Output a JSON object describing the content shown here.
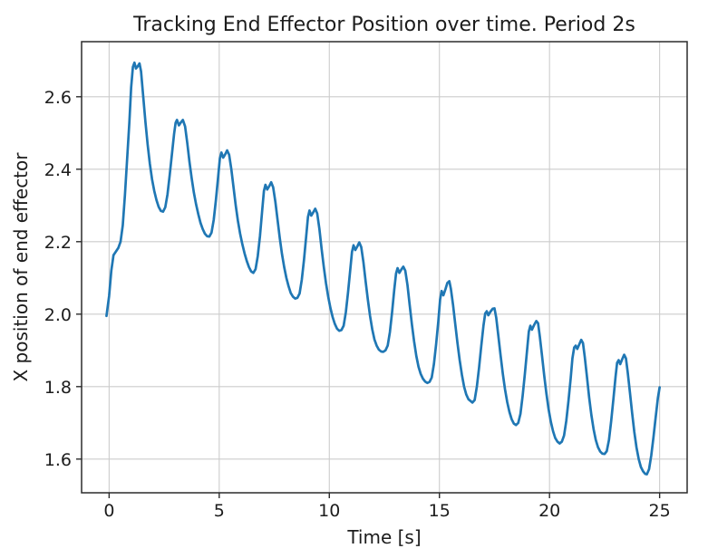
{
  "figure": {
    "background_color": "#ffffff"
  },
  "chart_data": {
    "type": "line",
    "title": "Tracking End Effector Position over time. Period 2s",
    "xlabel": "Time [s]",
    "ylabel": "X position of end effector",
    "xlim": [
      -1.25,
      26.25
    ],
    "ylim": [
      1.507,
      2.752
    ],
    "xtick_values": [
      0,
      5,
      10,
      15,
      20,
      25
    ],
    "xtick_labels": [
      "0",
      "5",
      "10",
      "15",
      "20",
      "25"
    ],
    "ytick_values": [
      1.6,
      1.8,
      2.0,
      2.2,
      2.4,
      2.6
    ],
    "ytick_labels": [
      "1.6",
      "1.8",
      "2.0",
      "2.2",
      "2.4",
      "2.6"
    ],
    "grid": true,
    "legend": "none",
    "line_color": "#1f77b4",
    "grid_color": "#cccccc",
    "spine_color": "#2b2b2b",
    "tick_color": "#2b2b2b",
    "text_color": "#1c1c1c",
    "series": [
      {
        "name": "x-position-of-end-effector",
        "points": [
          [
            -0.12,
            1.995
          ],
          [
            0,
            2.05
          ],
          [
            0.1,
            2.12
          ],
          [
            0.2,
            2.163
          ],
          [
            0.3,
            2.172
          ],
          [
            0.42,
            2.183
          ],
          [
            0.52,
            2.2
          ],
          [
            0.62,
            2.245
          ],
          [
            0.72,
            2.33
          ],
          [
            0.82,
            2.43
          ],
          [
            0.92,
            2.53
          ],
          [
            1.0,
            2.625
          ],
          [
            1.08,
            2.682
          ],
          [
            1.15,
            2.694
          ],
          [
            1.22,
            2.678
          ],
          [
            1.3,
            2.684
          ],
          [
            1.38,
            2.692
          ],
          [
            1.45,
            2.67
          ],
          [
            1.55,
            2.6
          ],
          [
            1.65,
            2.53
          ],
          [
            1.75,
            2.468
          ],
          [
            1.85,
            2.415
          ],
          [
            1.95,
            2.372
          ],
          [
            2.05,
            2.34
          ],
          [
            2.15,
            2.315
          ],
          [
            2.25,
            2.296
          ],
          [
            2.35,
            2.285
          ],
          [
            2.45,
            2.283
          ],
          [
            2.55,
            2.295
          ],
          [
            2.65,
            2.33
          ],
          [
            2.75,
            2.383
          ],
          [
            2.85,
            2.44
          ],
          [
            2.95,
            2.497
          ],
          [
            3.02,
            2.528
          ],
          [
            3.08,
            2.536
          ],
          [
            3.17,
            2.521
          ],
          [
            3.27,
            2.53
          ],
          [
            3.35,
            2.536
          ],
          [
            3.45,
            2.518
          ],
          [
            3.55,
            2.472
          ],
          [
            3.65,
            2.42
          ],
          [
            3.75,
            2.375
          ],
          [
            3.85,
            2.335
          ],
          [
            3.95,
            2.303
          ],
          [
            4.05,
            2.276
          ],
          [
            4.15,
            2.252
          ],
          [
            4.25,
            2.235
          ],
          [
            4.35,
            2.222
          ],
          [
            4.45,
            2.215
          ],
          [
            4.55,
            2.214
          ],
          [
            4.65,
            2.225
          ],
          [
            4.75,
            2.26
          ],
          [
            4.85,
            2.315
          ],
          [
            4.95,
            2.378
          ],
          [
            5.03,
            2.43
          ],
          [
            5.1,
            2.446
          ],
          [
            5.18,
            2.432
          ],
          [
            5.28,
            2.442
          ],
          [
            5.36,
            2.452
          ],
          [
            5.45,
            2.44
          ],
          [
            5.55,
            2.4
          ],
          [
            5.65,
            2.35
          ],
          [
            5.75,
            2.3
          ],
          [
            5.85,
            2.257
          ],
          [
            5.95,
            2.222
          ],
          [
            6.05,
            2.193
          ],
          [
            6.15,
            2.168
          ],
          [
            6.25,
            2.147
          ],
          [
            6.35,
            2.13
          ],
          [
            6.45,
            2.118
          ],
          [
            6.55,
            2.114
          ],
          [
            6.65,
            2.124
          ],
          [
            6.75,
            2.16
          ],
          [
            6.85,
            2.215
          ],
          [
            6.95,
            2.285
          ],
          [
            7.03,
            2.34
          ],
          [
            7.1,
            2.357
          ],
          [
            7.18,
            2.344
          ],
          [
            7.28,
            2.354
          ],
          [
            7.36,
            2.364
          ],
          [
            7.45,
            2.35
          ],
          [
            7.55,
            2.31
          ],
          [
            7.65,
            2.26
          ],
          [
            7.75,
            2.21
          ],
          [
            7.85,
            2.166
          ],
          [
            7.95,
            2.13
          ],
          [
            8.05,
            2.1
          ],
          [
            8.15,
            2.077
          ],
          [
            8.25,
            2.058
          ],
          [
            8.35,
            2.048
          ],
          [
            8.45,
            2.043
          ],
          [
            8.55,
            2.045
          ],
          [
            8.65,
            2.057
          ],
          [
            8.75,
            2.095
          ],
          [
            8.85,
            2.15
          ],
          [
            8.95,
            2.215
          ],
          [
            9.03,
            2.268
          ],
          [
            9.1,
            2.286
          ],
          [
            9.18,
            2.272
          ],
          [
            9.28,
            2.282
          ],
          [
            9.36,
            2.291
          ],
          [
            9.45,
            2.278
          ],
          [
            9.55,
            2.235
          ],
          [
            9.65,
            2.18
          ],
          [
            9.75,
            2.13
          ],
          [
            9.85,
            2.085
          ],
          [
            9.95,
            2.048
          ],
          [
            10.05,
            2.017
          ],
          [
            10.15,
            1.992
          ],
          [
            10.25,
            1.973
          ],
          [
            10.35,
            1.96
          ],
          [
            10.45,
            1.954
          ],
          [
            10.55,
            1.956
          ],
          [
            10.65,
            1.968
          ],
          [
            10.75,
            2.005
          ],
          [
            10.85,
            2.06
          ],
          [
            10.95,
            2.122
          ],
          [
            11.03,
            2.172
          ],
          [
            11.1,
            2.19
          ],
          [
            11.18,
            2.177
          ],
          [
            11.28,
            2.188
          ],
          [
            11.36,
            2.198
          ],
          [
            11.45,
            2.185
          ],
          [
            11.55,
            2.143
          ],
          [
            11.65,
            2.09
          ],
          [
            11.75,
            2.04
          ],
          [
            11.85,
            1.995
          ],
          [
            11.95,
            1.958
          ],
          [
            12.05,
            1.93
          ],
          [
            12.15,
            1.913
          ],
          [
            12.25,
            1.902
          ],
          [
            12.35,
            1.897
          ],
          [
            12.45,
            1.896
          ],
          [
            12.55,
            1.9
          ],
          [
            12.65,
            1.913
          ],
          [
            12.75,
            1.95
          ],
          [
            12.85,
            2.005
          ],
          [
            12.95,
            2.068
          ],
          [
            13.03,
            2.112
          ],
          [
            13.1,
            2.127
          ],
          [
            13.18,
            2.114
          ],
          [
            13.28,
            2.124
          ],
          [
            13.36,
            2.131
          ],
          [
            13.45,
            2.12
          ],
          [
            13.55,
            2.08
          ],
          [
            13.65,
            2.025
          ],
          [
            13.75,
            1.972
          ],
          [
            13.85,
            1.925
          ],
          [
            13.95,
            1.885
          ],
          [
            14.05,
            1.855
          ],
          [
            14.15,
            1.835
          ],
          [
            14.25,
            1.822
          ],
          [
            14.35,
            1.814
          ],
          [
            14.45,
            1.81
          ],
          [
            14.55,
            1.813
          ],
          [
            14.65,
            1.825
          ],
          [
            14.75,
            1.862
          ],
          [
            14.85,
            1.917
          ],
          [
            14.95,
            1.98
          ],
          [
            15.03,
            2.04
          ],
          [
            15.1,
            2.064
          ],
          [
            15.18,
            2.052
          ],
          [
            15.28,
            2.07
          ],
          [
            15.36,
            2.086
          ],
          [
            15.45,
            2.091
          ],
          [
            15.52,
            2.07
          ],
          [
            15.62,
            2.025
          ],
          [
            15.72,
            1.972
          ],
          [
            15.82,
            1.92
          ],
          [
            15.92,
            1.873
          ],
          [
            16.02,
            1.833
          ],
          [
            16.12,
            1.8
          ],
          [
            16.22,
            1.778
          ],
          [
            16.32,
            1.765
          ],
          [
            16.42,
            1.76
          ],
          [
            16.5,
            1.756
          ],
          [
            16.6,
            1.763
          ],
          [
            16.7,
            1.8
          ],
          [
            16.8,
            1.852
          ],
          [
            16.9,
            1.912
          ],
          [
            17.0,
            1.968
          ],
          [
            17.08,
            2.002
          ],
          [
            17.15,
            2.008
          ],
          [
            17.22,
            1.997
          ],
          [
            17.32,
            2.007
          ],
          [
            17.42,
            2.015
          ],
          [
            17.5,
            2.016
          ],
          [
            17.58,
            1.99
          ],
          [
            17.68,
            1.938
          ],
          [
            17.78,
            1.885
          ],
          [
            17.88,
            1.835
          ],
          [
            17.98,
            1.792
          ],
          [
            18.08,
            1.757
          ],
          [
            18.18,
            1.73
          ],
          [
            18.28,
            1.71
          ],
          [
            18.38,
            1.698
          ],
          [
            18.48,
            1.694
          ],
          [
            18.58,
            1.7
          ],
          [
            18.68,
            1.725
          ],
          [
            18.78,
            1.775
          ],
          [
            18.88,
            1.835
          ],
          [
            18.98,
            1.9
          ],
          [
            19.06,
            1.952
          ],
          [
            19.13,
            1.968
          ],
          [
            19.2,
            1.957
          ],
          [
            19.3,
            1.97
          ],
          [
            19.4,
            1.981
          ],
          [
            19.48,
            1.975
          ],
          [
            19.56,
            1.938
          ],
          [
            19.66,
            1.885
          ],
          [
            19.76,
            1.83
          ],
          [
            19.86,
            1.78
          ],
          [
            19.96,
            1.737
          ],
          [
            20.06,
            1.703
          ],
          [
            20.16,
            1.677
          ],
          [
            20.26,
            1.658
          ],
          [
            20.36,
            1.648
          ],
          [
            20.46,
            1.643
          ],
          [
            20.56,
            1.648
          ],
          [
            20.66,
            1.665
          ],
          [
            20.76,
            1.705
          ],
          [
            20.86,
            1.76
          ],
          [
            20.96,
            1.822
          ],
          [
            21.04,
            1.878
          ],
          [
            21.12,
            1.908
          ],
          [
            21.19,
            1.913
          ],
          [
            21.26,
            1.904
          ],
          [
            21.36,
            1.918
          ],
          [
            21.44,
            1.929
          ],
          [
            21.52,
            1.92
          ],
          [
            21.6,
            1.882
          ],
          [
            21.7,
            1.827
          ],
          [
            21.8,
            1.77
          ],
          [
            21.9,
            1.722
          ],
          [
            22.0,
            1.683
          ],
          [
            22.1,
            1.653
          ],
          [
            22.2,
            1.633
          ],
          [
            22.3,
            1.621
          ],
          [
            22.4,
            1.615
          ],
          [
            22.5,
            1.614
          ],
          [
            22.6,
            1.622
          ],
          [
            22.7,
            1.653
          ],
          [
            22.8,
            1.705
          ],
          [
            22.9,
            1.765
          ],
          [
            23.0,
            1.828
          ],
          [
            23.07,
            1.866
          ],
          [
            23.14,
            1.873
          ],
          [
            23.21,
            1.862
          ],
          [
            23.31,
            1.877
          ],
          [
            23.39,
            1.888
          ],
          [
            23.47,
            1.878
          ],
          [
            23.55,
            1.84
          ],
          [
            23.65,
            1.785
          ],
          [
            23.75,
            1.728
          ],
          [
            23.85,
            1.675
          ],
          [
            23.95,
            1.632
          ],
          [
            24.05,
            1.6
          ],
          [
            24.15,
            1.578
          ],
          [
            24.25,
            1.566
          ],
          [
            24.35,
            1.559
          ],
          [
            24.42,
            1.558
          ],
          [
            24.52,
            1.572
          ],
          [
            24.62,
            1.61
          ],
          [
            24.72,
            1.66
          ],
          [
            24.82,
            1.715
          ],
          [
            24.92,
            1.768
          ],
          [
            25.0,
            1.798
          ]
        ]
      }
    ]
  }
}
